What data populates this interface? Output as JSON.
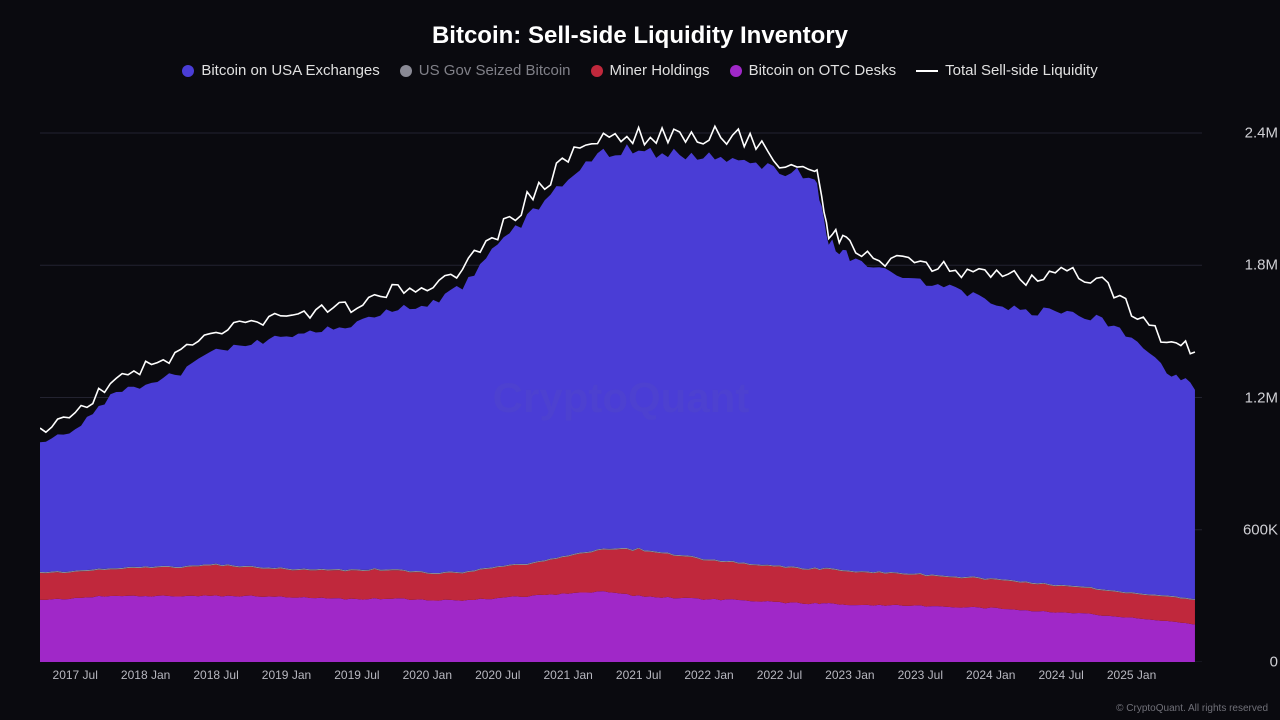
{
  "chart": {
    "type": "stacked-area-with-line",
    "title": "Bitcoin: Sell-side Liquidity Inventory",
    "watermark": "CryptoQuant",
    "copyright": "© CryptoQuant. All rights reserved",
    "background_color": "#0a0a0f",
    "title_color": "#ffffff",
    "title_fontsize": 24,
    "legend_fontsize": 15,
    "legend": [
      {
        "label": "Bitcoin on USA Exchanges",
        "color": "#4a3dd6",
        "dim": false
      },
      {
        "label": "US Gov Seized Bitcoin",
        "color": "#8a8a95",
        "dim": true
      },
      {
        "label": "Miner Holdings",
        "color": "#c0283c",
        "dim": false
      },
      {
        "label": "Bitcoin on OTC Desks",
        "color": "#a028c8",
        "dim": false
      },
      {
        "label": "Total Sell-side Liquidity",
        "line": true,
        "color": "#ffffff",
        "dim": false
      }
    ],
    "y_axis": {
      "min": 0,
      "max": 2550000,
      "ticks": [
        {
          "value": 0,
          "label": "0"
        },
        {
          "value": 600000,
          "label": "600K"
        },
        {
          "value": 1200000,
          "label": "1.2M"
        },
        {
          "value": 1800000,
          "label": "1.8M"
        },
        {
          "value": 2400000,
          "label": "2.4M"
        }
      ],
      "tick_fontsize": 15,
      "tick_color": "#d0d0d5",
      "grid_color": "#232330"
    },
    "x_axis": {
      "min": 0,
      "max": 16.5,
      "ticks": [
        {
          "value": 0.5,
          "label": "2017 Jul"
        },
        {
          "value": 1.5,
          "label": "2018 Jan"
        },
        {
          "value": 2.5,
          "label": "2018 Jul"
        },
        {
          "value": 3.5,
          "label": "2019 Jan"
        },
        {
          "value": 4.5,
          "label": "2019 Jul"
        },
        {
          "value": 5.5,
          "label": "2020 Jan"
        },
        {
          "value": 6.5,
          "label": "2020 Jul"
        },
        {
          "value": 7.5,
          "label": "2021 Jan"
        },
        {
          "value": 8.5,
          "label": "2021 Jul"
        },
        {
          "value": 9.5,
          "label": "2022 Jan"
        },
        {
          "value": 10.5,
          "label": "2022 Jul"
        },
        {
          "value": 11.5,
          "label": "2023 Jan"
        },
        {
          "value": 12.5,
          "label": "2023 Jul"
        },
        {
          "value": 13.5,
          "label": "2024 Jan"
        },
        {
          "value": 14.5,
          "label": "2024 Jul"
        },
        {
          "value": 15.5,
          "label": "2025 Jan"
        }
      ],
      "tick_fontsize": 12,
      "tick_color": "#b8b8c0"
    },
    "series": {
      "x": [
        0,
        0.5,
        1,
        1.5,
        2,
        2.5,
        3,
        3.5,
        4,
        4.5,
        5,
        5.5,
        6,
        6.5,
        7,
        7.5,
        8,
        8.5,
        9,
        9.5,
        10,
        10.5,
        11,
        11.2,
        11.5,
        12,
        12.5,
        13,
        13.5,
        14,
        14.5,
        15,
        15.5,
        16,
        16.4
      ],
      "otc": [
        280,
        290,
        300,
        300,
        300,
        300,
        300,
        295,
        290,
        285,
        290,
        280,
        280,
        290,
        300,
        310,
        320,
        300,
        290,
        285,
        280,
        270,
        265,
        265,
        260,
        258,
        255,
        250,
        245,
        235,
        225,
        215,
        200,
        185,
        170
      ],
      "miner": [
        120,
        120,
        120,
        130,
        130,
        140,
        130,
        125,
        125,
        130,
        130,
        120,
        125,
        140,
        145,
        170,
        190,
        210,
        195,
        175,
        165,
        160,
        155,
        155,
        150,
        145,
        140,
        135,
        130,
        125,
        120,
        115,
        110,
        110,
        110
      ],
      "gov": [
        5,
        5,
        5,
        5,
        5,
        5,
        5,
        5,
        5,
        5,
        5,
        5,
        5,
        5,
        5,
        5,
        5,
        5,
        5,
        5,
        5,
        5,
        5,
        5,
        5,
        5,
        5,
        5,
        5,
        5,
        5,
        5,
        5,
        5,
        5
      ],
      "usa": [
        580,
        640,
        780,
        830,
        880,
        970,
        1010,
        1060,
        1090,
        1110,
        1180,
        1220,
        1295,
        1450,
        1585,
        1720,
        1790,
        1810,
        1820,
        1830,
        1830,
        1795,
        1770,
        1480,
        1420,
        1380,
        1330,
        1300,
        1250,
        1225,
        1245,
        1225,
        1155,
        1020,
        960
      ],
      "total": [
        1050,
        1120,
        1270,
        1340,
        1400,
        1505,
        1530,
        1565,
        1590,
        1615,
        1680,
        1700,
        1780,
        1950,
        2120,
        2280,
        2370,
        2390,
        2380,
        2395,
        2370,
        2280,
        2245,
        1950,
        1880,
        1830,
        1800,
        1780,
        1750,
        1740,
        1780,
        1740,
        1600,
        1450,
        1420
      ],
      "colors": {
        "otc": "#a028c8",
        "miner": "#c0283c",
        "gov": "#8a8a95",
        "usa": "#4a3dd6",
        "total_line": "#ffffff"
      },
      "noise_amplitude": 0.025,
      "line_noise_amplitude": 0.04,
      "line_width": 1.6
    }
  }
}
